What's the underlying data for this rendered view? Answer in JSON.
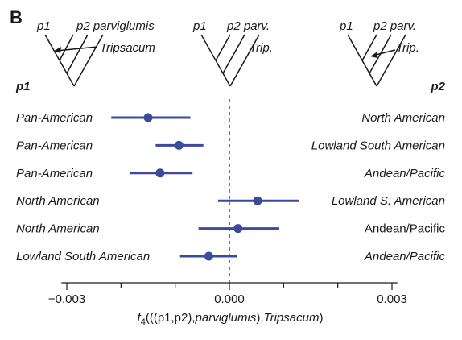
{
  "panel_label": "B",
  "trees": [
    {
      "labels": [
        "p1",
        "p2 parviglumis",
        "Tripsacum"
      ],
      "arrow_from": "Tripsacum",
      "arrow_to": "p1"
    },
    {
      "labels": [
        "p1",
        "p2 parv.",
        "Trip."
      ],
      "arrow_from": null,
      "arrow_to": null
    },
    {
      "labels": [
        "p1",
        "p2 parv.",
        "Trip."
      ],
      "arrow_from": "Trip.",
      "arrow_to": "p2"
    }
  ],
  "column_headers": {
    "p1": "p1",
    "p2": "p2"
  },
  "colors": {
    "point": "#3b4a9c",
    "axis": "#1a1a1a",
    "reference_line": "#1a1a1a"
  },
  "chart_data": {
    "type": "scatter",
    "title": "",
    "xlabel": "f4(((p1,p2),parviglumis),Tripsacum)",
    "xlabel_parts": {
      "prefix": "f",
      "subscript": "4",
      "main": "(((p1,p2),",
      "italic_a": "parviglumis",
      "mid": "),",
      "italic_b": "Tripsacum",
      "suffix": ")"
    },
    "xlim": [
      -0.0031,
      0.0031
    ],
    "xticks": [
      -0.003,
      0.0,
      0.003
    ],
    "xtick_labels": [
      "−0.003",
      "0.000",
      "0.003"
    ],
    "reference_line": 0.0,
    "grid": false,
    "rows": [
      {
        "p1": "Pan-American",
        "p2": "North American",
        "p2_italic": true,
        "estimate": -0.0015,
        "ci": [
          -0.00218,
          -0.00072
        ]
      },
      {
        "p1": "Pan-American",
        "p2": "Lowland South American",
        "p2_italic": true,
        "estimate": -0.00093,
        "ci": [
          -0.00136,
          -0.00048
        ]
      },
      {
        "p1": "Pan-American",
        "p2": "Andean/Pacific",
        "p2_italic": true,
        "estimate": -0.00128,
        "ci": [
          -0.00184,
          -0.00068
        ]
      },
      {
        "p1": "North American",
        "p2": "Lowland S. American",
        "p2_italic": true,
        "estimate": 0.00052,
        "ci": [
          -0.00021,
          0.00128
        ]
      },
      {
        "p1": "North American",
        "p2": "Andean/Pacific",
        "p2_italic": false,
        "estimate": 0.00016,
        "ci": [
          -0.00057,
          0.00092
        ]
      },
      {
        "p1": "Lowland South American",
        "p2": "Andean/Pacific",
        "p2_italic": true,
        "estimate": -0.00038,
        "ci": [
          -0.00091,
          0.00014
        ]
      }
    ]
  }
}
